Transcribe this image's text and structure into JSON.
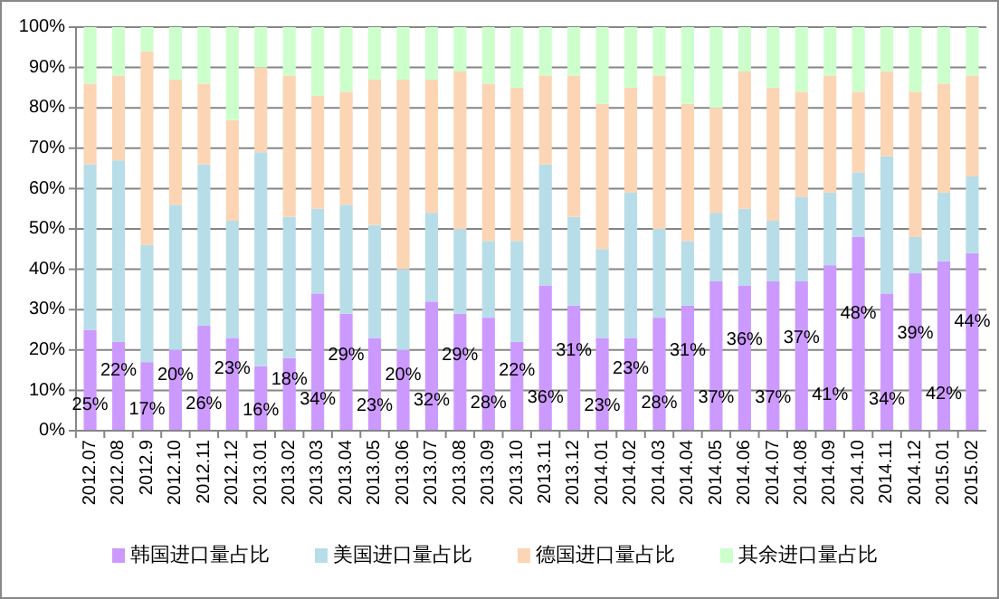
{
  "chart_data": {
    "type": "bar",
    "stacked": true,
    "categories": [
      "2012.07",
      "2012.08",
      "2012.9",
      "2012.10",
      "2012.11",
      "2012.12",
      "2013.01",
      "2013.02",
      "2013.03",
      "2013.04",
      "2013.05",
      "2013.06",
      "2013.07",
      "2013.08",
      "2013.09",
      "2013.10",
      "2013.11",
      "2013.12",
      "2014.01",
      "2014.02",
      "2014.03",
      "2014.04",
      "2014.05",
      "2014.06",
      "2014.07",
      "2014.08",
      "2014.09",
      "2014.10",
      "2014.11",
      "2014.12",
      "2015.01",
      "2015.02"
    ],
    "series": [
      {
        "name": "韩国进口量占比",
        "color": "#cc99ff",
        "values": [
          25,
          22,
          17,
          20,
          26,
          23,
          16,
          18,
          34,
          29,
          23,
          20,
          32,
          29,
          28,
          22,
          36,
          31,
          23,
          23,
          28,
          31,
          37,
          36,
          37,
          37,
          41,
          48,
          34,
          39,
          42,
          44
        ],
        "value_labels": [
          "25%",
          "22%",
          "17%",
          "20%",
          "26%",
          "23%",
          "16%",
          "18%",
          "34%",
          "29%",
          "23%",
          "20%",
          "32%",
          "29%",
          "28%",
          "22%",
          "36%",
          "31%",
          "23%",
          "23%",
          "28%",
          "31%",
          "37%",
          "36%",
          "37%",
          "37%",
          "41%",
          "48%",
          "34%",
          "39%",
          "42%",
          "44%"
        ]
      },
      {
        "name": "美国进口量占比",
        "color": "#b7dde8",
        "values": [
          41,
          45,
          29,
          36,
          40,
          29,
          53,
          35,
          21,
          27,
          28,
          20,
          22,
          21,
          19,
          25,
          30,
          22,
          22,
          36,
          22,
          16,
          17,
          19,
          15,
          21,
          18,
          16,
          34,
          9,
          17,
          19
        ]
      },
      {
        "name": "德国进口量占比",
        "color": "#fcd5b5",
        "values": [
          20,
          21,
          48,
          31,
          20,
          25,
          21,
          35,
          28,
          28,
          36,
          47,
          33,
          39,
          39,
          38,
          22,
          35,
          36,
          26,
          38,
          34,
          26,
          34,
          33,
          26,
          29,
          20,
          21,
          36,
          27,
          25
        ]
      },
      {
        "name": "其余进口量占比",
        "color": "#ccffcc",
        "values": [
          14,
          12,
          6,
          13,
          14,
          23,
          10,
          12,
          17,
          16,
          13,
          13,
          13,
          11,
          14,
          15,
          12,
          12,
          19,
          15,
          12,
          19,
          20,
          11,
          15,
          16,
          12,
          16,
          11,
          16,
          14,
          12
        ]
      }
    ],
    "ylim": [
      0,
      100
    ],
    "yticks": [
      {
        "value": 0,
        "label": "0%"
      },
      {
        "value": 10,
        "label": "10%"
      },
      {
        "value": 20,
        "label": "20%"
      },
      {
        "value": 30,
        "label": "30%"
      },
      {
        "value": 40,
        "label": "40%"
      },
      {
        "value": 50,
        "label": "50%"
      },
      {
        "value": 60,
        "label": "60%"
      },
      {
        "value": 70,
        "label": "70%"
      },
      {
        "value": 80,
        "label": "80%"
      },
      {
        "value": 90,
        "label": "90%"
      },
      {
        "value": 100,
        "label": "100%"
      }
    ],
    "grid": "y",
    "legend": "bottom"
  }
}
